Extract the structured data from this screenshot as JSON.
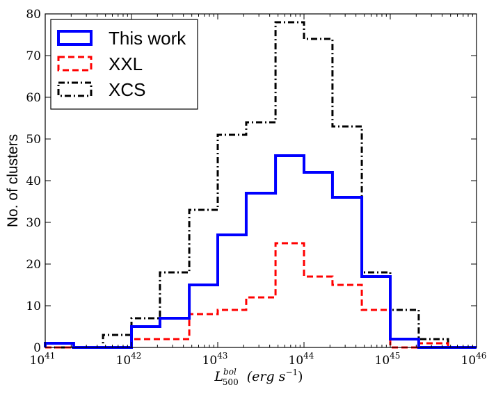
{
  "chart_data": {
    "type": "histogram",
    "title": "",
    "xlabel": {
      "base": "L",
      "sup": "bol",
      "sub": "500",
      "units": "(erg s",
      "units_sup": "−1",
      "units_close": ")"
    },
    "ylabel": "No. of clusters",
    "xscale": "log",
    "xlim_exp": [
      41,
      46
    ],
    "ylim": [
      0,
      80
    ],
    "x_ticks": [
      {
        "base": "10",
        "exp": "41",
        "value": 41
      },
      {
        "base": "10",
        "exp": "42",
        "value": 42
      },
      {
        "base": "10",
        "exp": "43",
        "value": 43
      },
      {
        "base": "10",
        "exp": "44",
        "value": 44
      },
      {
        "base": "10",
        "exp": "45",
        "value": 45
      },
      {
        "base": "10",
        "exp": "46",
        "value": 46
      }
    ],
    "y_ticks": [
      "0",
      "10",
      "20",
      "30",
      "40",
      "50",
      "60",
      "70",
      "80"
    ],
    "bin_edges_log10": [
      41.0,
      41.33,
      41.67,
      42.0,
      42.33,
      42.67,
      43.0,
      43.33,
      43.67,
      44.0,
      44.33,
      44.67,
      45.0,
      45.33,
      45.67,
      46.0
    ],
    "series": [
      {
        "name": "This work",
        "color": "#0000ff",
        "dash": "solid",
        "counts": [
          1,
          0,
          0,
          5,
          7,
          15,
          27,
          37,
          46,
          42,
          36,
          17,
          2,
          0,
          0
        ]
      },
      {
        "name": "XXL",
        "color": "#ff0000",
        "dash": "dashed",
        "counts": [
          0,
          0,
          0,
          2,
          2,
          8,
          9,
          12,
          25,
          17,
          15,
          9,
          0,
          1,
          0
        ]
      },
      {
        "name": "XCS",
        "color": "#000000",
        "dash": "dashdot",
        "counts": [
          0,
          0,
          3,
          7,
          18,
          33,
          51,
          54,
          78,
          74,
          53,
          18,
          9,
          2,
          0
        ]
      }
    ],
    "legend_position": "top-left"
  }
}
